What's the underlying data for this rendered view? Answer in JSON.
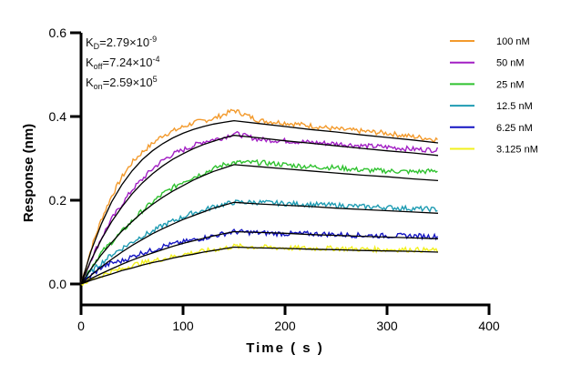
{
  "chart_data": {
    "type": "line",
    "xlabel": "Time ( s )",
    "ylabel": "Response (nm)",
    "xlim": [
      0,
      400
    ],
    "ylim": [
      -0.05,
      0.6
    ],
    "xticks": [
      "0",
      "100",
      "200",
      "300",
      "400"
    ],
    "yticks": [
      "0.0",
      "0.2",
      "0.4",
      "0.6"
    ],
    "grid": false,
    "legend_position": "top-right",
    "annotations": [
      {
        "k": "K",
        "sub": "D",
        "eq": "=2.79×10",
        "sup": "-9"
      },
      {
        "k": "K",
        "sub": "off",
        "eq": "=7.24×10",
        "sup": "-4"
      },
      {
        "k": "K",
        "sub": "on",
        "eq": "=2.59×10",
        "sup": "5"
      }
    ],
    "x": [
      0,
      10,
      20,
      30,
      40,
      50,
      60,
      70,
      80,
      90,
      100,
      110,
      120,
      130,
      140,
      150,
      175,
      200,
      225,
      250,
      275,
      300,
      325,
      350
    ],
    "series": [
      {
        "name": "100 nM",
        "color": "#f39a2c",
        "values": [
          0,
          0.085,
          0.155,
          0.21,
          0.255,
          0.29,
          0.315,
          0.335,
          0.355,
          0.365,
          0.375,
          0.385,
          0.39,
          0.395,
          0.405,
          0.415,
          0.39,
          0.385,
          0.378,
          0.37,
          0.365,
          0.36,
          0.352,
          0.345
        ],
        "fit": [
          0,
          0.08,
          0.144,
          0.196,
          0.237,
          0.27,
          0.297,
          0.318,
          0.335,
          0.349,
          0.36,
          0.369,
          0.376,
          0.382,
          0.386,
          0.39,
          0.383,
          0.376,
          0.369,
          0.363,
          0.356,
          0.35,
          0.344,
          0.337
        ]
      },
      {
        "name": "50 nM",
        "color": "#a21fc4",
        "values": [
          0,
          0.06,
          0.11,
          0.155,
          0.19,
          0.225,
          0.25,
          0.275,
          0.295,
          0.31,
          0.32,
          0.33,
          0.34,
          0.345,
          0.35,
          0.36,
          0.345,
          0.342,
          0.338,
          0.335,
          0.33,
          0.327,
          0.322,
          0.32
        ],
        "fit": [
          0,
          0.058,
          0.107,
          0.149,
          0.184,
          0.215,
          0.241,
          0.263,
          0.282,
          0.298,
          0.311,
          0.323,
          0.333,
          0.341,
          0.349,
          0.355,
          0.349,
          0.342,
          0.336,
          0.33,
          0.324,
          0.318,
          0.313,
          0.307
        ]
      },
      {
        "name": "25 nM",
        "color": "#2fc22f",
        "values": [
          0,
          0.04,
          0.075,
          0.1,
          0.125,
          0.15,
          0.175,
          0.195,
          0.215,
          0.23,
          0.245,
          0.255,
          0.265,
          0.275,
          0.285,
          0.29,
          0.29,
          0.285,
          0.28,
          0.278,
          0.272,
          0.27,
          0.268,
          0.27
        ],
        "fit": [
          0,
          0.037,
          0.07,
          0.099,
          0.126,
          0.149,
          0.171,
          0.19,
          0.207,
          0.222,
          0.235,
          0.248,
          0.259,
          0.269,
          0.277,
          0.285,
          0.28,
          0.275,
          0.27,
          0.265,
          0.26,
          0.256,
          0.251,
          0.247
        ]
      },
      {
        "name": "12.5 nM",
        "color": "#1f9cb3",
        "values": [
          0,
          0.03,
          0.05,
          0.07,
          0.085,
          0.1,
          0.115,
          0.125,
          0.14,
          0.15,
          0.16,
          0.17,
          0.175,
          0.185,
          0.19,
          0.195,
          0.195,
          0.192,
          0.19,
          0.188,
          0.185,
          0.183,
          0.18,
          0.178
        ],
        "fit": [
          0,
          0.021,
          0.041,
          0.059,
          0.076,
          0.092,
          0.106,
          0.12,
          0.132,
          0.143,
          0.154,
          0.163,
          0.172,
          0.181,
          0.188,
          0.195,
          0.191,
          0.188,
          0.185,
          0.181,
          0.178,
          0.175,
          0.172,
          0.169
        ]
      },
      {
        "name": "6.25 nM",
        "color": "#1414c2",
        "values": [
          0,
          0.02,
          0.04,
          0.05,
          0.055,
          0.065,
          0.075,
          0.08,
          0.09,
          0.095,
          0.1,
          0.105,
          0.11,
          0.115,
          0.12,
          0.125,
          0.122,
          0.12,
          0.12,
          0.118,
          0.116,
          0.115,
          0.115,
          0.113
        ],
        "fit": [
          0,
          0.013,
          0.025,
          0.036,
          0.047,
          0.057,
          0.066,
          0.074,
          0.082,
          0.09,
          0.097,
          0.103,
          0.109,
          0.115,
          0.12,
          0.125,
          0.123,
          0.121,
          0.118,
          0.116,
          0.114,
          0.112,
          0.11,
          0.108
        ]
      },
      {
        "name": "3.125 nM",
        "color": "#f2f01e",
        "values": [
          0,
          0.01,
          0.02,
          0.03,
          0.035,
          0.045,
          0.05,
          0.055,
          0.06,
          0.065,
          0.07,
          0.075,
          0.078,
          0.082,
          0.085,
          0.09,
          0.088,
          0.086,
          0.085,
          0.085,
          0.083,
          0.082,
          0.082,
          0.08
        ],
        "fit": [
          0,
          0.009,
          0.017,
          0.024,
          0.032,
          0.038,
          0.045,
          0.051,
          0.056,
          0.062,
          0.067,
          0.071,
          0.076,
          0.08,
          0.084,
          0.088,
          0.086,
          0.085,
          0.083,
          0.082,
          0.08,
          0.079,
          0.078,
          0.076
        ]
      }
    ]
  }
}
